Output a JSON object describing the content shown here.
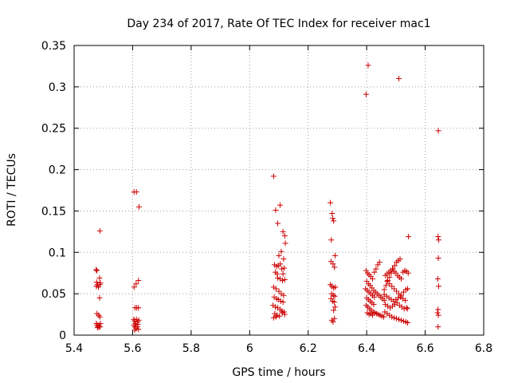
{
  "chart_data": {
    "type": "scatter",
    "title": "Day 234 of 2017, Rate Of TEC Index for receiver mac1",
    "xlabel": "GPS time / hours",
    "ylabel": "ROTI / TECUs",
    "xlim": [
      5.4,
      6.8
    ],
    "ylim": [
      0,
      0.35
    ],
    "x_ticks": [
      "5.4",
      "5.6",
      "5.8",
      "6",
      "6.2",
      "6.4",
      "6.6",
      "6.8"
    ],
    "y_ticks": [
      "0",
      "0.05",
      "0.1",
      "0.15",
      "0.2",
      "0.25",
      "0.3",
      "0.35"
    ],
    "grid": true,
    "marker": "plus",
    "color": "#cc0000",
    "series": [
      {
        "points": [
          [
            5.475,
            0.079
          ],
          [
            5.478,
            0.078
          ],
          [
            5.477,
            0.064
          ],
          [
            5.48,
            0.061
          ],
          [
            5.476,
            0.059
          ],
          [
            5.483,
            0.058
          ],
          [
            5.488,
            0.061
          ],
          [
            5.487,
            0.069
          ],
          [
            5.49,
            0.063
          ],
          [
            5.487,
            0.045
          ],
          [
            5.478,
            0.026
          ],
          [
            5.484,
            0.024
          ],
          [
            5.488,
            0.022
          ],
          [
            5.476,
            0.014
          ],
          [
            5.479,
            0.012
          ],
          [
            5.482,
            0.01
          ],
          [
            5.485,
            0.012
          ],
          [
            5.487,
            0.01
          ],
          [
            5.49,
            0.014
          ],
          [
            5.489,
            0.01
          ],
          [
            5.48,
            0.009
          ],
          [
            5.488,
            0.126
          ],
          [
            5.605,
            0.173
          ],
          [
            5.613,
            0.173
          ],
          [
            5.622,
            0.155
          ],
          [
            5.605,
            0.058
          ],
          [
            5.612,
            0.062
          ],
          [
            5.62,
            0.066
          ],
          [
            5.608,
            0.033
          ],
          [
            5.614,
            0.033
          ],
          [
            5.62,
            0.033
          ],
          [
            5.604,
            0.019
          ],
          [
            5.607,
            0.017
          ],
          [
            5.61,
            0.014
          ],
          [
            5.613,
            0.019
          ],
          [
            5.617,
            0.016
          ],
          [
            5.621,
            0.018
          ],
          [
            5.604,
            0.012
          ],
          [
            5.608,
            0.01
          ],
          [
            5.612,
            0.008
          ],
          [
            5.616,
            0.01
          ],
          [
            5.62,
            0.007
          ],
          [
            5.607,
            0.006
          ],
          [
            5.618,
            0.013
          ],
          [
            6.082,
            0.192
          ],
          [
            6.089,
            0.151
          ],
          [
            6.096,
            0.135
          ],
          [
            6.104,
            0.157
          ],
          [
            6.114,
            0.125
          ],
          [
            6.12,
            0.12
          ],
          [
            6.122,
            0.111
          ],
          [
            6.1,
            0.096
          ],
          [
            6.108,
            0.101
          ],
          [
            6.116,
            0.092
          ],
          [
            6.085,
            0.085
          ],
          [
            6.092,
            0.083
          ],
          [
            6.098,
            0.084
          ],
          [
            6.105,
            0.086
          ],
          [
            6.11,
            0.08
          ],
          [
            6.118,
            0.081
          ],
          [
            6.088,
            0.076
          ],
          [
            6.094,
            0.074
          ],
          [
            6.114,
            0.074
          ],
          [
            6.096,
            0.069
          ],
          [
            6.104,
            0.068
          ],
          [
            6.112,
            0.066
          ],
          [
            6.12,
            0.067
          ],
          [
            6.082,
            0.058
          ],
          [
            6.09,
            0.056
          ],
          [
            6.1,
            0.053
          ],
          [
            6.108,
            0.05
          ],
          [
            6.116,
            0.048
          ],
          [
            6.084,
            0.046
          ],
          [
            6.092,
            0.044
          ],
          [
            6.098,
            0.043
          ],
          [
            6.106,
            0.041
          ],
          [
            6.114,
            0.04
          ],
          [
            6.08,
            0.036
          ],
          [
            6.088,
            0.034
          ],
          [
            6.096,
            0.033
          ],
          [
            6.104,
            0.031
          ],
          [
            6.11,
            0.029
          ],
          [
            6.118,
            0.028
          ],
          [
            6.086,
            0.026
          ],
          [
            6.094,
            0.024
          ],
          [
            6.102,
            0.023
          ],
          [
            6.082,
            0.021
          ],
          [
            6.09,
            0.022
          ],
          [
            6.112,
            0.027
          ],
          [
            6.12,
            0.025
          ],
          [
            6.276,
            0.16
          ],
          [
            6.282,
            0.147
          ],
          [
            6.287,
            0.138
          ],
          [
            6.284,
            0.141
          ],
          [
            6.279,
            0.115
          ],
          [
            6.292,
            0.096
          ],
          [
            6.278,
            0.089
          ],
          [
            6.285,
            0.086
          ],
          [
            6.29,
            0.082
          ],
          [
            6.276,
            0.061
          ],
          [
            6.281,
            0.059
          ],
          [
            6.287,
            0.057
          ],
          [
            6.293,
            0.058
          ],
          [
            6.28,
            0.05
          ],
          [
            6.286,
            0.048
          ],
          [
            6.291,
            0.047
          ],
          [
            6.278,
            0.044
          ],
          [
            6.284,
            0.041
          ],
          [
            6.289,
            0.04
          ],
          [
            6.292,
            0.034
          ],
          [
            6.287,
            0.03
          ],
          [
            6.281,
            0.018
          ],
          [
            6.285,
            0.016
          ],
          [
            6.29,
            0.02
          ],
          [
            6.405,
            0.326
          ],
          [
            6.398,
            0.291
          ],
          [
            6.398,
            0.078
          ],
          [
            6.403,
            0.075
          ],
          [
            6.408,
            0.073
          ],
          [
            6.414,
            0.071
          ],
          [
            6.42,
            0.068
          ],
          [
            6.426,
            0.076
          ],
          [
            6.432,
            0.08
          ],
          [
            6.438,
            0.085
          ],
          [
            6.444,
            0.088
          ],
          [
            6.4,
            0.065
          ],
          [
            6.406,
            0.062
          ],
          [
            6.412,
            0.06
          ],
          [
            6.418,
            0.057
          ],
          [
            6.424,
            0.054
          ],
          [
            6.43,
            0.052
          ],
          [
            6.436,
            0.05
          ],
          [
            6.442,
            0.048
          ],
          [
            6.448,
            0.046
          ],
          [
            6.454,
            0.044
          ],
          [
            6.46,
            0.042
          ],
          [
            6.396,
            0.056
          ],
          [
            6.402,
            0.054
          ],
          [
            6.408,
            0.052
          ],
          [
            6.414,
            0.05
          ],
          [
            6.42,
            0.048
          ],
          [
            6.426,
            0.046
          ],
          [
            6.4,
            0.045
          ],
          [
            6.406,
            0.043
          ],
          [
            6.412,
            0.041
          ],
          [
            6.418,
            0.039
          ],
          [
            6.424,
            0.037
          ],
          [
            6.398,
            0.036
          ],
          [
            6.404,
            0.034
          ],
          [
            6.41,
            0.032
          ],
          [
            6.416,
            0.03
          ],
          [
            6.422,
            0.028
          ],
          [
            6.428,
            0.027
          ],
          [
            6.434,
            0.026
          ],
          [
            6.44,
            0.025
          ],
          [
            6.446,
            0.024
          ],
          [
            6.452,
            0.023
          ],
          [
            6.458,
            0.022
          ],
          [
            6.402,
            0.027
          ],
          [
            6.408,
            0.025
          ],
          [
            6.414,
            0.026
          ],
          [
            6.42,
            0.024
          ],
          [
            6.46,
            0.055
          ],
          [
            6.466,
            0.06
          ],
          [
            6.472,
            0.066
          ],
          [
            6.478,
            0.07
          ],
          [
            6.484,
            0.075
          ],
          [
            6.49,
            0.08
          ],
          [
            6.496,
            0.084
          ],
          [
            6.502,
            0.088
          ],
          [
            6.508,
            0.09
          ],
          [
            6.514,
            0.092
          ],
          [
            6.464,
            0.072
          ],
          [
            6.47,
            0.074
          ],
          [
            6.476,
            0.076
          ],
          [
            6.482,
            0.078
          ],
          [
            6.488,
            0.08
          ],
          [
            6.494,
            0.077
          ],
          [
            6.5,
            0.075
          ],
          [
            6.506,
            0.072
          ],
          [
            6.512,
            0.07
          ],
          [
            6.518,
            0.068
          ],
          [
            6.524,
            0.076
          ],
          [
            6.53,
            0.078
          ],
          [
            6.536,
            0.077
          ],
          [
            6.542,
            0.075
          ],
          [
            6.47,
            0.065
          ],
          [
            6.478,
            0.062
          ],
          [
            6.486,
            0.059
          ],
          [
            6.494,
            0.056
          ],
          [
            6.502,
            0.053
          ],
          [
            6.51,
            0.05
          ],
          [
            6.518,
            0.048
          ],
          [
            6.526,
            0.052
          ],
          [
            6.534,
            0.055
          ],
          [
            6.54,
            0.056
          ],
          [
            6.46,
            0.049
          ],
          [
            6.468,
            0.047
          ],
          [
            6.476,
            0.045
          ],
          [
            6.484,
            0.043
          ],
          [
            6.492,
            0.041
          ],
          [
            6.5,
            0.043
          ],
          [
            6.508,
            0.045
          ],
          [
            6.516,
            0.046
          ],
          [
            6.524,
            0.044
          ],
          [
            6.532,
            0.042
          ],
          [
            6.464,
            0.037
          ],
          [
            6.472,
            0.035
          ],
          [
            6.48,
            0.033
          ],
          [
            6.488,
            0.035
          ],
          [
            6.496,
            0.037
          ],
          [
            6.504,
            0.039
          ],
          [
            6.512,
            0.036
          ],
          [
            6.52,
            0.034
          ],
          [
            6.528,
            0.032
          ],
          [
            6.536,
            0.033
          ],
          [
            6.462,
            0.028
          ],
          [
            6.47,
            0.026
          ],
          [
            6.478,
            0.024
          ],
          [
            6.486,
            0.022
          ],
          [
            6.494,
            0.021
          ],
          [
            6.502,
            0.02
          ],
          [
            6.51,
            0.019
          ],
          [
            6.518,
            0.018
          ],
          [
            6.526,
            0.017
          ],
          [
            6.534,
            0.016
          ],
          [
            6.54,
            0.015
          ],
          [
            6.51,
            0.31
          ],
          [
            6.543,
            0.119
          ],
          [
            6.539,
            0.032
          ],
          [
            6.645,
            0.247
          ],
          [
            6.644,
            0.119
          ],
          [
            6.646,
            0.115
          ],
          [
            6.645,
            0.093
          ],
          [
            6.643,
            0.068
          ],
          [
            6.646,
            0.059
          ],
          [
            6.644,
            0.031
          ],
          [
            6.642,
            0.027
          ],
          [
            6.645,
            0.024
          ],
          [
            6.644,
            0.01
          ]
        ]
      }
    ]
  }
}
